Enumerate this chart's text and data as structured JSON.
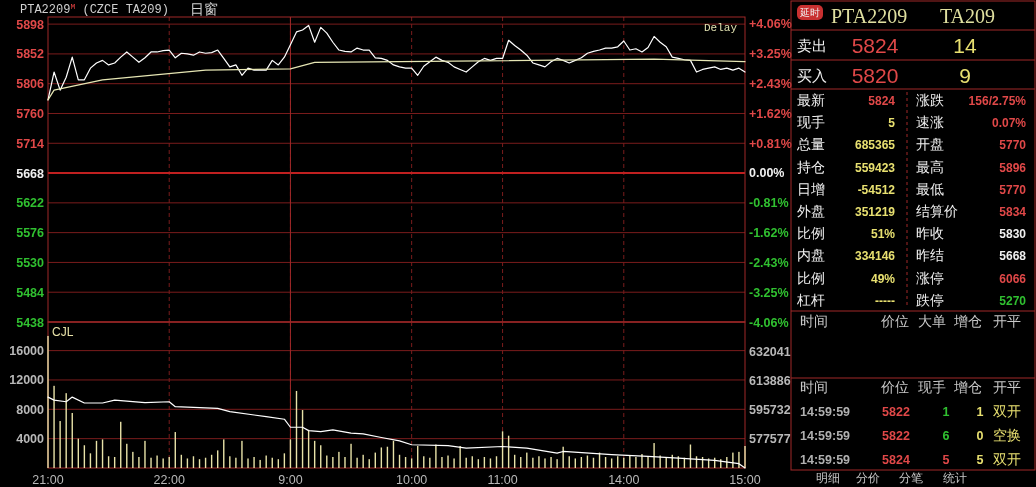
{
  "chart_data": [
    {
      "type": "line",
      "title": "PTA2209$^{M}$ (CZCE TA209)",
      "subtitle": "日窗",
      "annotations": [
        "Delay"
      ],
      "categories": [
        "21:00",
        null,
        null,
        null,
        null,
        null,
        null,
        null,
        null,
        null,
        null,
        null,
        null,
        null,
        null,
        null,
        null,
        null,
        null,
        null,
        "22:00",
        null,
        null,
        null,
        null,
        null,
        null,
        null,
        null,
        null,
        null,
        null,
        null,
        null,
        null,
        null,
        null,
        null,
        null,
        null,
        "9:00",
        null,
        null,
        null,
        null,
        null,
        null,
        null,
        null,
        null,
        null,
        null,
        null,
        null,
        null,
        null,
        null,
        null,
        null,
        null,
        "10:00",
        null,
        null,
        null,
        null,
        null,
        null,
        null,
        null,
        null,
        null,
        null,
        null,
        null,
        null,
        "11:00",
        null,
        null,
        null,
        null,
        null,
        null,
        null,
        null,
        null,
        null,
        null,
        null,
        null,
        null,
        null,
        null,
        null,
        null,
        null,
        "14:00",
        null,
        null,
        null,
        null,
        null,
        null,
        null,
        null,
        null,
        null,
        null,
        null,
        null,
        null,
        null,
        null,
        null,
        null,
        null,
        "15:00"
      ],
      "ylim": [
        5438,
        5909
      ],
      "yticks": [
        5438,
        5484,
        5530,
        5576,
        5622,
        5668,
        5714,
        5760,
        5806,
        5852,
        5898
      ],
      "y2lim": [
        -4.06,
        4.25
      ],
      "y2ticks": [
        {
          "value": -4.06,
          "label": "-4.06%"
        },
        {
          "value": -3.25,
          "label": "-3.25%"
        },
        {
          "value": -2.43,
          "label": "-2.43%"
        },
        {
          "value": -1.62,
          "label": "-1.62%"
        },
        {
          "value": -0.81,
          "label": "-0.81%"
        },
        {
          "value": 0,
          "label": "0.00%"
        },
        {
          "value": 0.81,
          "label": "+0.81%"
        },
        {
          "value": 1.62,
          "label": "+1.62%"
        },
        {
          "value": 2.43,
          "label": "+2.43%"
        },
        {
          "value": 3.25,
          "label": "+3.25%"
        },
        {
          "value": 4.06,
          "label": "+4.06%"
        }
      ],
      "grid": true,
      "tick_labels": "y",
      "ref_lines": [
        {
          "axis": "y",
          "value": 5668,
          "color": "#c02020",
          "line_style": "solid"
        },
        {
          "axis": "x",
          "value": "9:00",
          "color": "#a02828",
          "line_style": "solid"
        }
      ],
      "series": [
        {
          "color": "#ffffff",
          "values": [
            5781,
            5824,
            5796,
            5816,
            5847,
            5812,
            5812,
            5830,
            5838,
            5842,
            5835,
            5838,
            5847,
            5855,
            5847,
            5839,
            5846,
            5855,
            5855,
            5857,
            5858,
            5846,
            5853,
            5852,
            5850,
            5855,
            5853,
            5854,
            5858,
            5845,
            5832,
            5835,
            5819,
            5830,
            5827,
            5827,
            5827,
            5842,
            5835,
            5847,
            5866,
            5886,
            5889,
            5896,
            5870,
            5893,
            5884,
            5870,
            5858,
            5856,
            5855,
            5861,
            5858,
            5858,
            5846,
            5845,
            5842,
            5835,
            5832,
            5830,
            5830,
            5819,
            5833,
            5840,
            5847,
            5842,
            5839,
            5832,
            5828,
            5824,
            5832,
            5840,
            5845,
            5842,
            5845,
            5845,
            5873,
            5865,
            5858,
            5850,
            5838,
            5835,
            5832,
            5840,
            5845,
            5842,
            5838,
            5842,
            5846,
            5853,
            5856,
            5858,
            5861,
            5861,
            5863,
            5872,
            5858,
            5860,
            5855,
            5862,
            5879,
            5870,
            5863,
            5847,
            5845,
            5843,
            5842,
            5824,
            5828,
            5830,
            5832,
            5828,
            5830,
            5827,
            5830,
            5824
          ]
        },
        {
          "color": "#e6e6b4",
          "values": [
            5781,
            5796,
            null,
            null,
            null,
            null,
            null,
            null,
            null,
            5812,
            null,
            null,
            null,
            null,
            null,
            null,
            null,
            null,
            null,
            null,
            null,
            null,
            null,
            null,
            null,
            null,
            5827,
            null,
            null,
            null,
            null,
            null,
            null,
            null,
            null,
            null,
            null,
            null,
            null,
            null,
            5829,
            null,
            null,
            null,
            5839,
            null,
            null,
            null,
            null,
            null,
            null,
            null,
            null,
            null,
            null,
            null,
            null,
            null,
            5840,
            null,
            null,
            null,
            null,
            null,
            null,
            null,
            null,
            null,
            null,
            null,
            null,
            null,
            null,
            null,
            null,
            null,
            null,
            null,
            null,
            null,
            null,
            null,
            null,
            null,
            null,
            null,
            null,
            null,
            null,
            null,
            null,
            null,
            null,
            null,
            null,
            null,
            null,
            null,
            null,
            null,
            5844,
            null,
            null,
            null,
            null,
            null,
            null,
            null,
            null,
            null,
            null,
            null,
            null,
            null,
            null,
            5840
          ]
        }
      ]
    },
    {
      "type": "bar",
      "title": "CJL",
      "categories": [
        "21:00",
        null,
        null,
        null,
        null,
        null,
        null,
        null,
        null,
        null,
        null,
        null,
        null,
        null,
        null,
        null,
        null,
        null,
        null,
        null,
        "22:00",
        null,
        null,
        null,
        null,
        null,
        null,
        null,
        null,
        null,
        null,
        null,
        null,
        null,
        null,
        null,
        null,
        null,
        null,
        null,
        "9:00",
        null,
        null,
        null,
        null,
        null,
        null,
        null,
        null,
        null,
        null,
        null,
        null,
        null,
        null,
        null,
        null,
        null,
        null,
        null,
        "10:00",
        null,
        null,
        null,
        null,
        null,
        null,
        null,
        null,
        null,
        null,
        null,
        null,
        null,
        null,
        "11:00",
        null,
        null,
        null,
        null,
        null,
        null,
        null,
        null,
        null,
        null,
        null,
        null,
        null,
        null,
        null,
        null,
        null,
        null,
        null,
        "14:00",
        null,
        null,
        null,
        null,
        null,
        null,
        null,
        null,
        null,
        null,
        null,
        null,
        null,
        null,
        null,
        null,
        null,
        null,
        null,
        "15:00"
      ],
      "ylim": [
        0,
        19900
      ],
      "yticks": [
        4000,
        8000,
        12000,
        16000
      ],
      "y2lim": [
        559400,
        650400
      ],
      "y2ticks": [
        577577,
        595732,
        613886,
        632041
      ],
      "grid": true,
      "ref_lines": [
        {
          "axis": "x",
          "value": "9:00",
          "color": "#a02828",
          "line_style": "solid"
        }
      ],
      "series": [
        {
          "type": "bar",
          "color": "#e8e2a8",
          "values": [
            18000,
            11200,
            6400,
            10200,
            7500,
            4000,
            3100,
            2000,
            3700,
            3900,
            1600,
            1500,
            6300,
            3300,
            2200,
            1500,
            3700,
            1400,
            1700,
            1300,
            1500,
            4900,
            1800,
            1300,
            1600,
            1200,
            1400,
            1800,
            2400,
            3900,
            1600,
            1400,
            3700,
            1300,
            1500,
            1100,
            1700,
            1400,
            1200,
            2000,
            3900,
            10500,
            7900,
            5200,
            3700,
            3100,
            1700,
            1500,
            2200,
            1500,
            3300,
            1400,
            1800,
            1200,
            2100,
            2800,
            2900,
            3700,
            1800,
            1500,
            1300,
            3000,
            1600,
            1400,
            3200,
            1500,
            1700,
            1300,
            3000,
            1400,
            1600,
            1200,
            1500,
            1300,
            1600,
            5000,
            4400,
            1800,
            1500,
            2100,
            1400,
            1600,
            1300,
            1500,
            1200,
            2900,
            1600,
            1300,
            1500,
            1700,
            1400,
            2100,
            1500,
            1300,
            1600,
            1400,
            1700,
            1500,
            1900,
            1600,
            3400,
            1700,
            1500,
            1800,
            1600,
            1400,
            3200,
            1600,
            1500,
            1300,
            1400,
            1200,
            1500,
            2100,
            2200,
            3000
          ]
        },
        {
          "type": "line",
          "axis": "y2",
          "color": "#ffffff",
          "values": [
            603600,
            601700,
            null,
            600700,
            603600,
            null,
            599900,
            null,
            null,
            599900,
            null,
            601700,
            null,
            null,
            null,
            null,
            600100,
            null,
            null,
            null,
            600700,
            597600,
            null,
            null,
            null,
            597000,
            null,
            null,
            596600,
            null,
            594500,
            null,
            null,
            null,
            null,
            null,
            591400,
            null,
            null,
            589800,
            584800,
            null,
            584800,
            582700,
            null,
            582100,
            null,
            583200,
            null,
            null,
            581100,
            null,
            580700,
            null,
            null,
            578400,
            null,
            null,
            576300,
            null,
            573900,
            null,
            null,
            null,
            null,
            null,
            573400,
            null,
            null,
            571800,
            null,
            null,
            null,
            null,
            null,
            572800,
            null,
            null,
            null,
            571800,
            null,
            null,
            null,
            null,
            568700,
            569700,
            null,
            null,
            null,
            null,
            null,
            null,
            null,
            567700,
            null,
            null,
            null,
            null,
            null,
            566600,
            null,
            null,
            null,
            null,
            565600,
            null,
            null,
            null,
            null,
            null,
            564100,
            null,
            null,
            null,
            562100,
            559400
          ]
        }
      ]
    },
    {
      "type": "other",
      "title": "PTA2209",
      "subtitle": "TA209",
      "annotations": [
        "延时",
        "卖出",
        "5824",
        "14",
        "买入",
        "5820",
        "9",
        "最新",
        "5824",
        "涨跌",
        "156/2.75%",
        "现手",
        "5",
        "速涨",
        "0.07%",
        "总量",
        "685365",
        "开盘",
        "5770",
        "持仓",
        "559423",
        "最高",
        "5896",
        "日增",
        "-54512",
        "最低",
        "5770",
        "外盘",
        "351219",
        "结算价",
        "5834",
        "比例",
        "51%",
        "昨收",
        "5830",
        "内盘",
        "334146",
        "昨结",
        "5668",
        "比例",
        "49%",
        "涨停",
        "6066",
        "杠杆",
        "-----",
        "跌停",
        "5270",
        "时间",
        "价位",
        "大单",
        "增仓",
        "开平",
        "时间",
        "价位",
        "现手",
        "增仓",
        "开平",
        "14:59:59",
        "5822",
        "1",
        "1",
        "双开",
        "14:59:59",
        "5822",
        "6",
        "0",
        "空换",
        "14:59:59",
        "5824",
        "5",
        "5",
        "双开",
        "明细",
        "分价",
        "分笔",
        "统计"
      ]
    }
  ]
}
